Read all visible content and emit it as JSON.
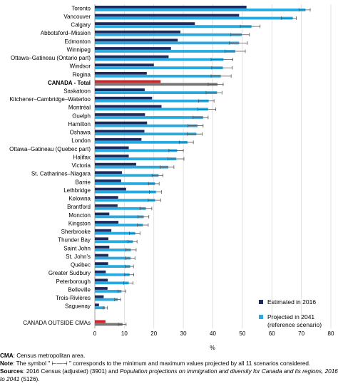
{
  "chart_data": {
    "type": "bar",
    "orientation": "horizontal",
    "xlabel": "%",
    "xlim": [
      0,
      80
    ],
    "xticks": [
      0,
      10,
      20,
      30,
      40,
      50,
      60,
      70,
      80
    ],
    "grid": true,
    "legend_position": "bottom-right",
    "categories": [
      "Toronto",
      "Vancouver",
      "Calgary",
      "Abbotsford–Mission",
      "Edmonton",
      "Winnipeg",
      "Ottawa–Gatineau (Ontario part)",
      "Windsor",
      "Regina",
      "CANADA - Total",
      "Saskatoon",
      "Kitchener–Cambridge–Waterloo",
      "Montréal",
      "Guelph",
      "Hamilton",
      "Oshawa",
      "London",
      "Ottawa–Gatineau (Quebec part)",
      "Halifax",
      "Victoria",
      "St. Catharines–Niagara",
      "Barrie",
      "Lethbridge",
      "Kelowna",
      "Brantford",
      "Moncton",
      "Kingston",
      "Sherbrooke",
      "Thunder Bay",
      "Saint John",
      "St. John's",
      "Québec",
      "Greater Sudbury",
      "Peterborough",
      "Belleville",
      "Trois-Rivières",
      "Saguenay",
      "",
      "CANADA OUTSIDE CMAs"
    ],
    "highlight_categories": [
      "CANADA - Total",
      "CANADA OUTSIDE CMAs"
    ],
    "series": [
      {
        "name": "Estimated in 2016",
        "color": "#1c2a5e",
        "highlight_color": "#d42027",
        "values": [
          51.4,
          48.9,
          33.9,
          29.0,
          28.1,
          25.8,
          25.0,
          20.0,
          17.6,
          22.3,
          16.9,
          19.4,
          22.6,
          17.0,
          17.7,
          16.8,
          15.8,
          11.5,
          11.5,
          14.0,
          9.2,
          8.9,
          10.6,
          7.9,
          7.7,
          4.9,
          8.0,
          5.6,
          4.6,
          4.9,
          4.6,
          4.5,
          3.7,
          4.4,
          4.3,
          3.0,
          1.4,
          null,
          3.6
        ]
      },
      {
        "name": "Projected in 2041",
        "name_line2": "(reference scenario)",
        "color": "#28a9e0",
        "highlight_color": "#777777",
        "values": [
          71.4,
          67.1,
          53.1,
          49.8,
          48.9,
          47.6,
          43.6,
          43.4,
          42.7,
          41.6,
          41.4,
          38.6,
          38.4,
          36.7,
          34.8,
          34.4,
          31.4,
          27.9,
          27.6,
          24.9,
          21.6,
          20.4,
          20.7,
          20.4,
          17.3,
          16.6,
          16.3,
          13.7,
          12.9,
          12.2,
          12.1,
          12.0,
          11.8,
          11.5,
          9.0,
          7.8,
          3.4,
          null,
          9.4
        ],
        "error_min": [
          69.2,
          63.2,
          49.3,
          46.1,
          45.6,
          44.1,
          39.4,
          39.6,
          39.4,
          38.4,
          37.7,
          35.2,
          34.9,
          33.3,
          31.6,
          31.3,
          28.6,
          25.1,
          24.8,
          22.1,
          19.4,
          18.2,
          18.5,
          18.1,
          15.3,
          14.6,
          14.4,
          11.7,
          11.2,
          10.5,
          10.4,
          10.3,
          10.1,
          9.8,
          7.8,
          6.7,
          2.8,
          null,
          8.0
        ],
        "error_max": [
          73.0,
          68.3,
          56.0,
          52.4,
          51.7,
          51.0,
          46.8,
          46.6,
          46.2,
          43.5,
          43.1,
          40.4,
          41.0,
          38.4,
          36.7,
          36.4,
          33.4,
          30.0,
          30.2,
          26.8,
          23.1,
          21.8,
          22.6,
          22.3,
          19.3,
          18.3,
          18.1,
          15.3,
          14.3,
          14.0,
          13.6,
          13.1,
          13.2,
          12.9,
          10.5,
          8.7,
          4.2,
          null,
          10.6
        ]
      }
    ]
  },
  "notes": {
    "cma_label": "CMA",
    "cma_text": ": Census metropolitan area.",
    "note_label": "Note",
    "note_text": ": The symbol \" ⊢—⊣ \" corresponds to the minimum and maximum values projected by all 11 scenarios considered.",
    "sources_label": "Sources",
    "sources_text_a": ": 2016 Census (adjusted) (3901) and ",
    "sources_italic_a": "Population projections on immigration and diversity for Canada and its regions, 2016",
    "sources_italic_b": "to 2041",
    "sources_text_b": " (5126)."
  }
}
